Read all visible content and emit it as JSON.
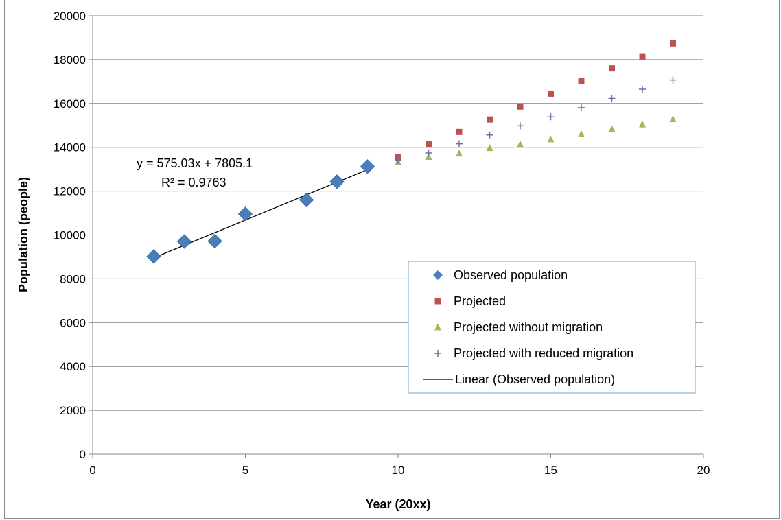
{
  "chart_data": {
    "type": "scatter",
    "title": "",
    "xlabel": "Year (20xx)",
    "ylabel": "Population (people)",
    "xlim": [
      0,
      20
    ],
    "ylim": [
      0,
      20000
    ],
    "x_ticks": [
      "0",
      "5",
      "10",
      "15",
      "20"
    ],
    "y_ticks": [
      "0",
      "2000",
      "4000",
      "6000",
      "8000",
      "10000",
      "12000",
      "14000",
      "16000",
      "18000",
      "20000"
    ],
    "grid": "horizontal",
    "legend_position": "bottom-right",
    "series": [
      {
        "name": "Observed population",
        "marker": "diamond",
        "color": "#4a7ebb",
        "x": [
          2,
          3,
          4,
          5,
          7,
          8,
          9
        ],
        "y": [
          9020,
          9700,
          9720,
          10960,
          11600,
          12430,
          13120
        ]
      },
      {
        "name": "Projected",
        "marker": "square",
        "color": "#c0504d",
        "x": [
          10,
          11,
          12,
          13,
          14,
          15,
          16,
          17,
          18,
          19
        ],
        "y": [
          13560,
          14130,
          14700,
          15270,
          15860,
          16450,
          17030,
          17600,
          18150,
          18740
        ]
      },
      {
        "name": "Projected without migration",
        "marker": "triangle",
        "color": "#9bbb59",
        "x": [
          10,
          11,
          12,
          13,
          14,
          15,
          16,
          17,
          18,
          19
        ],
        "y": [
          13330,
          13570,
          13720,
          13970,
          14140,
          14370,
          14600,
          14830,
          15050,
          15290
        ]
      },
      {
        "name": "Projected with reduced migration",
        "marker": "plus",
        "color": "#8064a2",
        "x": [
          10,
          11,
          12,
          13,
          14,
          15,
          16,
          17,
          18,
          19
        ],
        "y": [
          13420,
          13740,
          14160,
          14560,
          14980,
          15390,
          15810,
          16230,
          16650,
          17070
        ]
      }
    ],
    "trendline": {
      "name": "Linear (Observed population)",
      "slope": 575.03,
      "intercept": 7805.1,
      "x_range": [
        2,
        9
      ],
      "color": "#000000",
      "equation_label": "y = 575.03x + 7805.1",
      "r2_label": "R² = 0.9763"
    }
  }
}
